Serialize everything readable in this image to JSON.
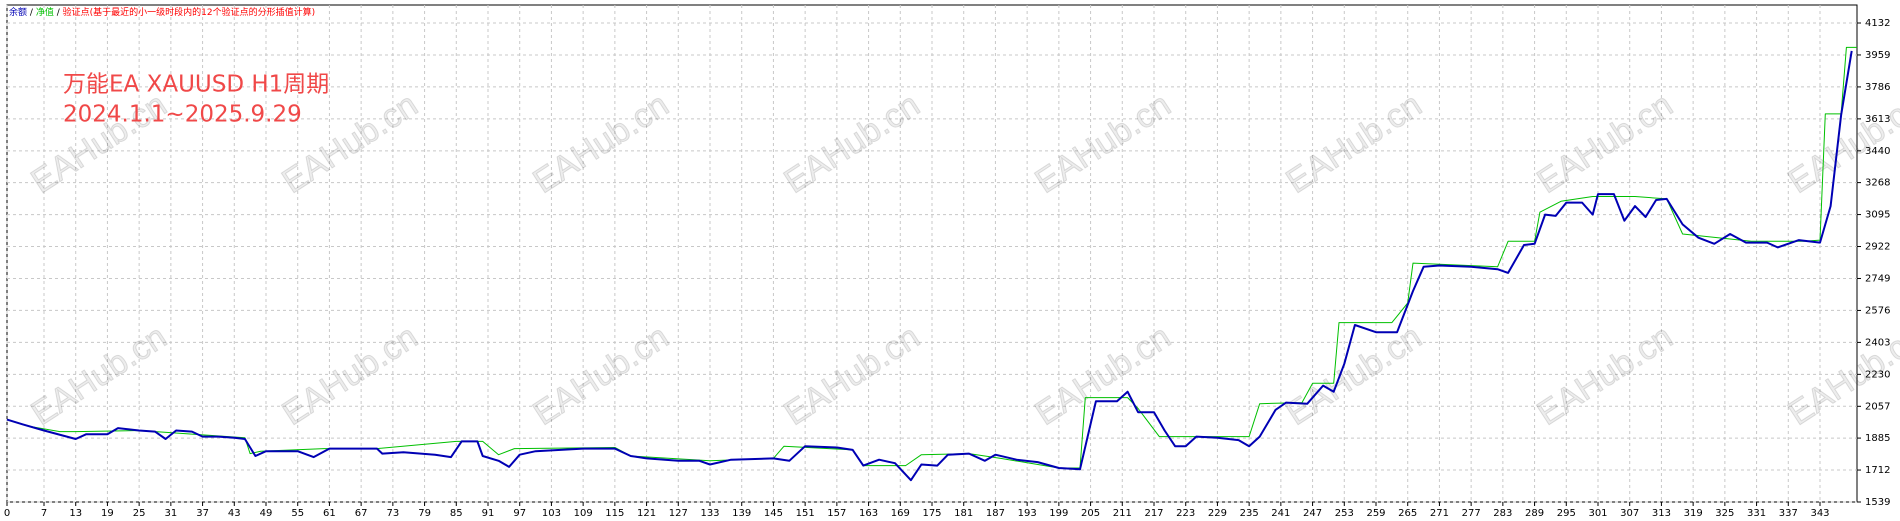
{
  "chart_data": {
    "type": "line",
    "legend_separator": "/",
    "legend_note": {
      "text": "验证点(基于最近的小一级时段内的12个验证点的分形插值计算)",
      "color": "#ff0000"
    },
    "annotations": [
      "万能EA XAUUSD H1周期",
      "2024.1.1~2025.9.29"
    ],
    "watermark": "EAHub.cn",
    "grid": true,
    "xlim": [
      0,
      350
    ],
    "xticks": [
      0,
      7,
      13,
      19,
      25,
      31,
      37,
      43,
      49,
      55,
      61,
      67,
      73,
      79,
      85,
      91,
      97,
      103,
      109,
      115,
      121,
      127,
      133,
      139,
      145,
      151,
      157,
      163,
      169,
      175,
      181,
      187,
      193,
      199,
      205,
      211,
      217,
      223,
      229,
      235,
      241,
      247,
      253,
      259,
      265,
      271,
      277,
      283,
      289,
      295,
      301,
      307,
      313,
      319,
      325,
      331,
      337,
      343
    ],
    "ylim": [
      1539,
      4132
    ],
    "yticks": [
      1539,
      1712,
      1885,
      2057,
      2230,
      2403,
      2576,
      2749,
      2922,
      3095,
      3268,
      3440,
      3613,
      3786,
      3959,
      4132
    ],
    "series": [
      {
        "name": "净值",
        "color": "#00c000",
        "width": 1,
        "x": [
          0,
          4,
          10,
          13,
          25,
          45,
          46,
          48,
          60,
          70,
          85,
          90,
          93,
          96,
          115,
          118,
          133,
          145,
          147,
          160,
          162,
          170,
          173,
          182,
          188,
          199,
          203,
          204,
          212,
          214,
          218,
          235,
          237,
          245,
          247,
          251,
          252,
          262,
          265,
          266,
          282,
          284,
          289,
          290,
          294,
          300,
          308,
          314,
          317,
          330,
          340,
          343,
          344,
          347,
          348,
          350
        ],
        "values": [
          1985,
          1950,
          1920,
          1920,
          1926,
          1887,
          1801,
          1814,
          1828,
          1828,
          1867,
          1867,
          1795,
          1828,
          1834,
          1788,
          1762,
          1775,
          1841,
          1821,
          1736,
          1736,
          1795,
          1801,
          1775,
          1723,
          1723,
          2104,
          2104,
          2045,
          1893,
          1893,
          2071,
          2077,
          2182,
          2182,
          2510,
          2510,
          2616,
          2832,
          2812,
          2950,
          2950,
          3108,
          3167,
          3193,
          3193,
          3180,
          2990,
          2950,
          2950,
          2957,
          3640,
          3640,
          4000,
          4000
        ]
      },
      {
        "name": "余额",
        "color": "#0000b4",
        "width": 2,
        "x": [
          0,
          3,
          7,
          13,
          15,
          19,
          21,
          25,
          28,
          30,
          32,
          35,
          37,
          40,
          43,
          45,
          47,
          49,
          55,
          58,
          61,
          67,
          70,
          71,
          75,
          81,
          84,
          86,
          89,
          90,
          93,
          95,
          97,
          100,
          109,
          115,
          118,
          121,
          127,
          131,
          133,
          137,
          145,
          148,
          151,
          157,
          160,
          162,
          165,
          168,
          171,
          173,
          176,
          178,
          182,
          185,
          187,
          191,
          195,
          199,
          203,
          206,
          210,
          212,
          214,
          217,
          219,
          221,
          223,
          225,
          229,
          233,
          235,
          237,
          240,
          242,
          246,
          249,
          251,
          253,
          255,
          259,
          263,
          266,
          268,
          271,
          277,
          282,
          284,
          287,
          289,
          291,
          293,
          295,
          298,
          300,
          301,
          304,
          306,
          308,
          310,
          312,
          314,
          317,
          320,
          323,
          326,
          329,
          333,
          335,
          339,
          343,
          345,
          347,
          349
        ],
        "values": [
          1985,
          1959,
          1926,
          1880,
          1906,
          1906,
          1939,
          1926,
          1920,
          1880,
          1926,
          1920,
          1893,
          1893,
          1887,
          1880,
          1788,
          1814,
          1814,
          1782,
          1828,
          1828,
          1828,
          1801,
          1808,
          1795,
          1782,
          1867,
          1867,
          1788,
          1762,
          1729,
          1795,
          1814,
          1828,
          1828,
          1788,
          1775,
          1762,
          1762,
          1742,
          1768,
          1775,
          1762,
          1841,
          1834,
          1821,
          1736,
          1768,
          1749,
          1657,
          1742,
          1736,
          1795,
          1801,
          1762,
          1795,
          1768,
          1755,
          1723,
          1716,
          2084,
          2084,
          2136,
          2025,
          2025,
          1926,
          1841,
          1841,
          1893,
          1887,
          1874,
          1841,
          1893,
          2038,
          2077,
          2071,
          2169,
          2136,
          2287,
          2497,
          2458,
          2458,
          2681,
          2812,
          2819,
          2812,
          2799,
          2779,
          2930,
          2937,
          3095,
          3088,
          3160,
          3160,
          3095,
          3206,
          3206,
          3062,
          3141,
          3082,
          3174,
          3180,
          3042,
          2970,
          2937,
          2990,
          2943,
          2943,
          2917,
          2957,
          2943,
          3141,
          3633,
          3981
        ]
      }
    ]
  }
}
